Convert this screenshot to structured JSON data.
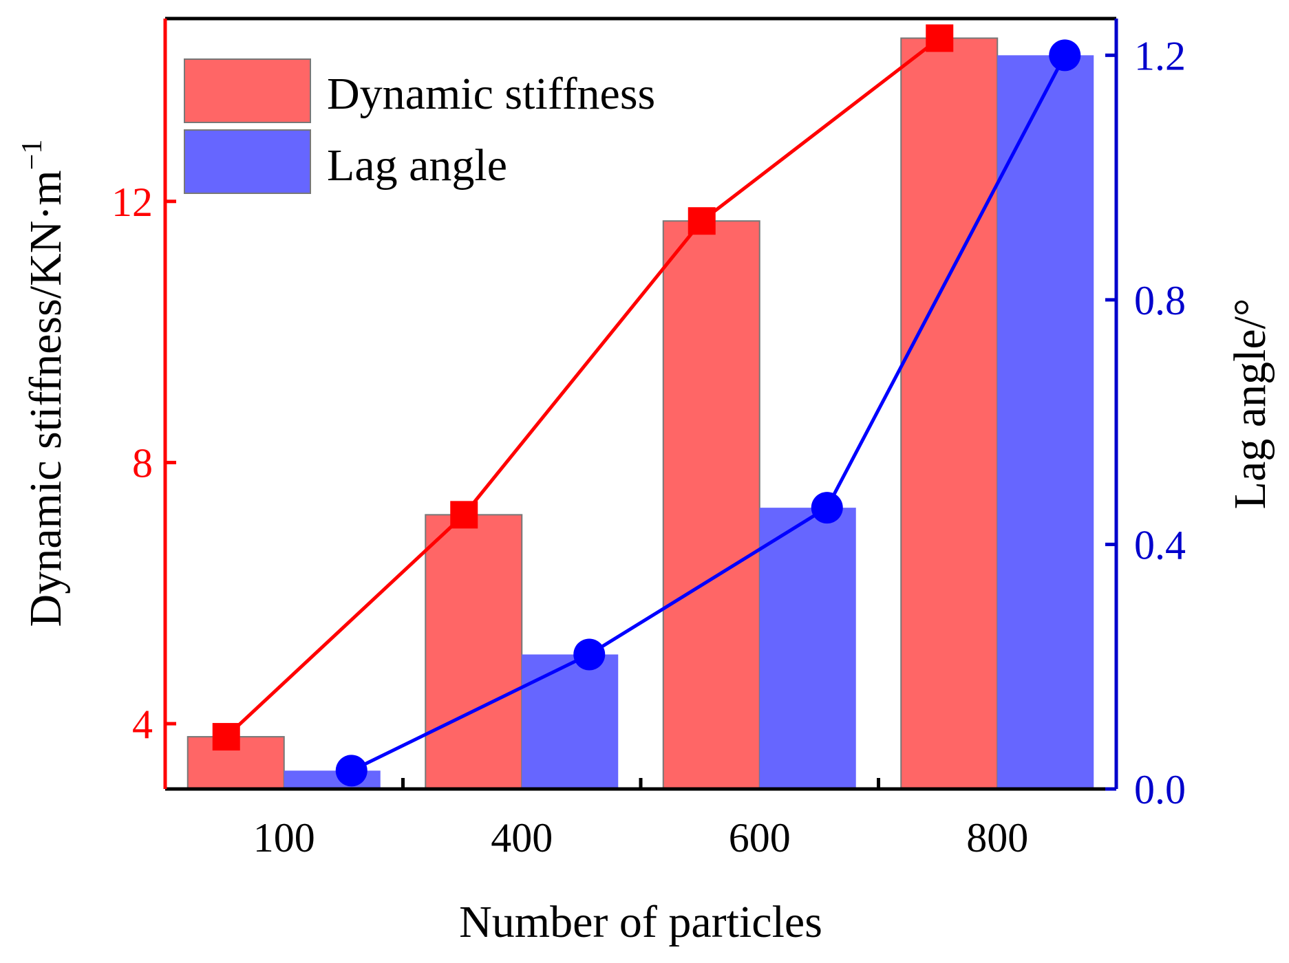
{
  "chart_data": {
    "type": "bar",
    "categories": [
      "100",
      "400",
      "600",
      "800"
    ],
    "xlabel": "Number of particles",
    "series": [
      {
        "name": "Dynamic stiffness",
        "axis": "left",
        "values": [
          3.8,
          7.2,
          11.7,
          14.5
        ],
        "bar_color": "#ff6666",
        "line_color": "#ff0000",
        "marker": "square"
      },
      {
        "name": "Lag angle",
        "axis": "right",
        "values": [
          0.03,
          0.22,
          0.46,
          1.2
        ],
        "bar_color": "#6666ff",
        "line_color": "#0000ff",
        "marker": "circle"
      }
    ],
    "y_left": {
      "label": "Dynamic stiffness/KN·m",
      "label_superscript": "−1",
      "range": [
        3.0,
        14.8
      ],
      "ticks": [
        4,
        8,
        12
      ],
      "tick_labels": [
        "4",
        "8",
        "12"
      ],
      "color": "#ff0000"
    },
    "y_right": {
      "label": "Lag angle/°",
      "range": [
        0.0,
        1.26
      ],
      "ticks": [
        0.0,
        0.4,
        0.8,
        1.2
      ],
      "tick_labels": [
        "0.0",
        "0.4",
        "0.8",
        "1.2"
      ],
      "color": "#0000cc"
    },
    "legend": {
      "position": "top-left"
    }
  }
}
